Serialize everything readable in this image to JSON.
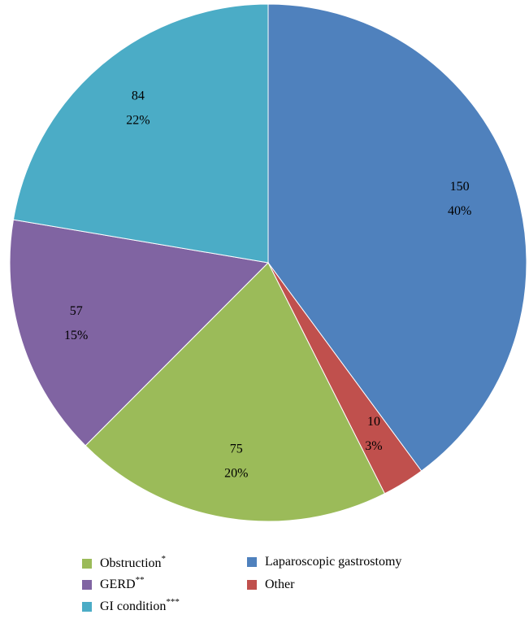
{
  "chart_data": {
    "type": "pie",
    "categories": [
      "Laparoscopic gastrostomy",
      "Other",
      "Obstruction",
      "GERD",
      "GI condition"
    ],
    "category_superscripts": [
      null,
      null,
      "*",
      "**",
      "***"
    ],
    "values": [
      150,
      10,
      75,
      57,
      84
    ],
    "percent_labels": [
      "40%",
      "3%",
      "20%",
      "15%",
      "22%"
    ],
    "colors": [
      "#4f81bd",
      "#c0504d",
      "#9bbb59",
      "#8064a2",
      "#4bacc6"
    ]
  }
}
